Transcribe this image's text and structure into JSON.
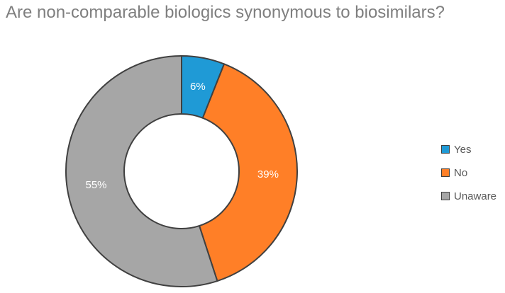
{
  "chart_data": {
    "type": "pie",
    "title": "Are non-comparable biologics synonymous to biosimilars?",
    "categories": [
      "Yes",
      "No",
      "Unaware"
    ],
    "values": [
      6,
      39,
      55
    ],
    "value_labels": [
      "6%",
      "39%",
      "55%"
    ],
    "colors": [
      "#1f9ad6",
      "#ff7f27",
      "#a6a6a6"
    ],
    "donut": true,
    "legend_position": "right"
  }
}
